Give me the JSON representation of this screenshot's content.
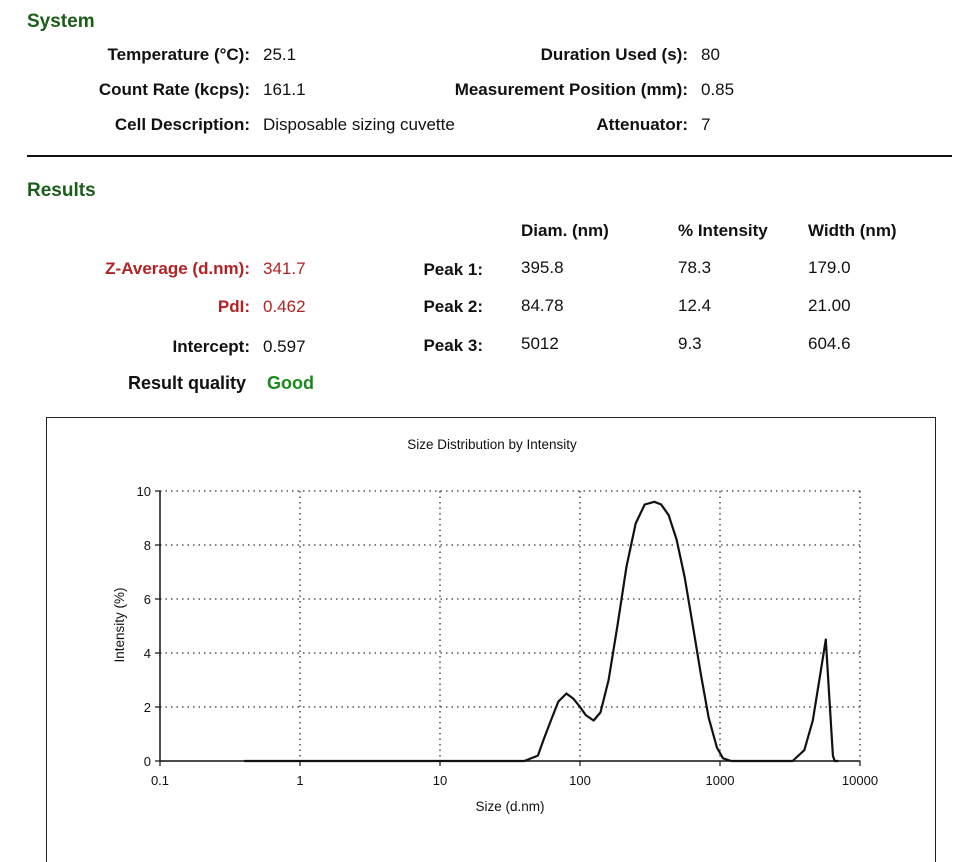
{
  "system": {
    "title": "System",
    "temperature_label": "Temperature (°C):",
    "temperature_value": "25.1",
    "count_rate_label": "Count Rate (kcps):",
    "count_rate_value": "161.1",
    "cell_label": "Cell Description:",
    "cell_value": "Disposable sizing cuvette",
    "duration_label": "Duration Used (s):",
    "duration_value": "80",
    "position_label": "Measurement Position (mm):",
    "position_value": "0.85",
    "attenuator_label": "Attenuator:",
    "attenuator_value": "7"
  },
  "results": {
    "title": "Results",
    "z_average_label": "Z-Average (d.nm):",
    "z_average_value": "341.7",
    "pdi_label": "PdI:",
    "pdi_value": "0.462",
    "intercept_label": "Intercept:",
    "intercept_value": "0.597",
    "quality_label": "Result quality",
    "quality_value": "Good",
    "peak_columns": [
      "Diam. (nm)",
      "% Intensity",
      "Width (nm)"
    ],
    "peaks": [
      {
        "label": "Peak 1:",
        "diam": "395.8",
        "intensity": "78.3",
        "width": "179.0"
      },
      {
        "label": "Peak 2:",
        "diam": "84.78",
        "intensity": "12.4",
        "width": "21.00"
      },
      {
        "label": "Peak 3:",
        "diam": "5012",
        "intensity": "9.3",
        "width": "604.6"
      }
    ]
  },
  "colors": {
    "section_title": "#1a5e1a",
    "highlight_red": "#b22222",
    "good_green": "#1a8a1a"
  },
  "chart_data": {
    "type": "line",
    "title": "Size Distribution by Intensity",
    "xlabel": "Size (d.nm)",
    "ylabel": "Intensity (%)",
    "x_scale": "log",
    "xlim": [
      0.1,
      10000
    ],
    "ylim": [
      0,
      10
    ],
    "x_ticks": [
      "0.1",
      "1",
      "10",
      "100",
      "1000",
      "10000"
    ],
    "y_ticks": [
      "0",
      "2",
      "4",
      "6",
      "8",
      "10"
    ],
    "grid": true,
    "series": [
      {
        "x": [
          0.4,
          40,
          50,
          55,
          62,
          70,
          80,
          90,
          100,
          110,
          125,
          140,
          160,
          185,
          215,
          250,
          290,
          340,
          380,
          430,
          490,
          560,
          640,
          730,
          830,
          950,
          1050,
          1200,
          1500,
          2500,
          3300,
          4000,
          4600,
          5200,
          5700,
          6100,
          6400,
          6600,
          7000
        ],
        "y": [
          0,
          0,
          0.2,
          0.8,
          1.5,
          2.2,
          2.5,
          2.3,
          2.0,
          1.7,
          1.5,
          1.8,
          3.0,
          5.0,
          7.2,
          8.8,
          9.5,
          9.6,
          9.5,
          9.1,
          8.2,
          6.8,
          5.0,
          3.2,
          1.6,
          0.5,
          0.1,
          0,
          0,
          0,
          0,
          0.4,
          1.5,
          3.2,
          4.5,
          2.0,
          0.2,
          0,
          0
        ]
      }
    ]
  }
}
